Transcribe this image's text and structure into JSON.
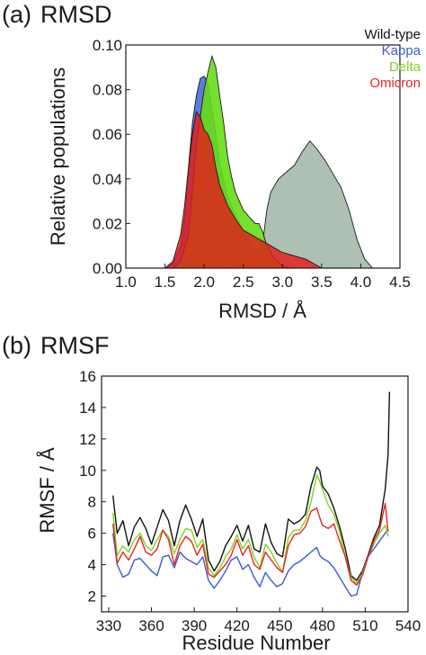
{
  "colors": {
    "wildtype": "#111111",
    "kappa": "#3a5bd9",
    "delta": "#7ed321",
    "omicron": "#e8261f",
    "wildtype_fill": "#9fb5a6",
    "kappa_fill": "#3f65d6",
    "delta_fill": "#66dd16",
    "omicron_fill": "#e41b1b"
  },
  "chart_data": [
    {
      "type": "area",
      "panel": "(a)",
      "title": "RMSD",
      "xlabel": "RMSD / Å",
      "ylabel": "Relative populations",
      "xlim": [
        1.0,
        4.5
      ],
      "ylim": [
        0,
        0.1
      ],
      "xticks": [
        "1.0",
        "1.5",
        "2.0",
        "2.5",
        "3.0",
        "3.5",
        "4.0",
        "4.5"
      ],
      "yticks": [
        "0.00",
        "0.02",
        "0.04",
        "0.06",
        "0.08",
        "0.10"
      ],
      "grid": false,
      "legend_position": "top-right",
      "series": [
        {
          "name": "Wild-type",
          "x": [
            1.95,
            2.2,
            2.5,
            2.7,
            2.75,
            2.8,
            2.85,
            2.95,
            3.05,
            3.15,
            3.25,
            3.35,
            3.45,
            3.55,
            3.65,
            3.75,
            3.85,
            3.95,
            4.05,
            4.15
          ],
          "y": [
            0.0,
            0.001,
            0.003,
            0.006,
            0.012,
            0.026,
            0.034,
            0.04,
            0.043,
            0.046,
            0.052,
            0.057,
            0.053,
            0.048,
            0.042,
            0.036,
            0.026,
            0.013,
            0.004,
            0.0
          ]
        },
        {
          "name": "Kappa",
          "x": [
            1.5,
            1.6,
            1.7,
            1.75,
            1.8,
            1.85,
            1.9,
            1.95,
            2.0,
            2.05,
            2.1,
            2.15,
            2.2,
            2.3,
            2.4,
            2.5,
            2.6,
            2.7,
            2.8,
            2.9,
            3.0,
            3.1
          ],
          "y": [
            0.0,
            0.002,
            0.01,
            0.022,
            0.045,
            0.065,
            0.077,
            0.085,
            0.086,
            0.083,
            0.071,
            0.06,
            0.046,
            0.032,
            0.024,
            0.016,
            0.01,
            0.006,
            0.003,
            0.002,
            0.001,
            0.0
          ]
        },
        {
          "name": "Delta",
          "x": [
            1.6,
            1.7,
            1.8,
            1.9,
            2.0,
            2.05,
            2.1,
            2.15,
            2.2,
            2.25,
            2.3,
            2.35,
            2.4,
            2.5,
            2.6,
            2.65,
            2.7,
            2.75,
            2.8,
            2.9,
            3.0,
            3.1
          ],
          "y": [
            0.0,
            0.003,
            0.015,
            0.055,
            0.08,
            0.088,
            0.095,
            0.09,
            0.077,
            0.065,
            0.05,
            0.041,
            0.034,
            0.026,
            0.022,
            0.02,
            0.02,
            0.016,
            0.01,
            0.004,
            0.001,
            0.0
          ]
        },
        {
          "name": "Omicron",
          "x": [
            1.5,
            1.6,
            1.7,
            1.75,
            1.8,
            1.85,
            1.9,
            1.95,
            2.0,
            2.05,
            2.1,
            2.15,
            2.2,
            2.3,
            2.4,
            2.5,
            2.6,
            2.7,
            2.8,
            2.9,
            3.0,
            3.1,
            3.2,
            3.3,
            3.4,
            3.5
          ],
          "y": [
            0.0,
            0.003,
            0.015,
            0.028,
            0.045,
            0.06,
            0.07,
            0.068,
            0.062,
            0.06,
            0.055,
            0.045,
            0.037,
            0.028,
            0.022,
            0.017,
            0.015,
            0.013,
            0.011,
            0.009,
            0.007,
            0.006,
            0.005,
            0.004,
            0.002,
            0.0
          ]
        }
      ]
    },
    {
      "type": "line",
      "panel": "(b)",
      "title": "RMSF",
      "xlabel": "Residue Number",
      "ylabel": "RMSF / Å",
      "xlim": [
        325,
        540
      ],
      "ylim": [
        1,
        16
      ],
      "xticks": [
        "330",
        "360",
        "390",
        "420",
        "450",
        "480",
        "510",
        "540"
      ],
      "yticks": [
        "2",
        "4",
        "6",
        "8",
        "10",
        "12",
        "14",
        "16"
      ],
      "grid": false,
      "series": [
        {
          "name": "Wild-type",
          "x": [
            333,
            336,
            340,
            344,
            348,
            352,
            356,
            360,
            364,
            368,
            372,
            376,
            380,
            384,
            388,
            392,
            396,
            400,
            404,
            408,
            412,
            416,
            420,
            424,
            428,
            432,
            436,
            440,
            444,
            448,
            452,
            456,
            460,
            464,
            468,
            472,
            476,
            478,
            480,
            484,
            488,
            492,
            496,
            500,
            504,
            508,
            512,
            516,
            520,
            524,
            526,
            527
          ],
          "y": [
            8.4,
            6.0,
            6.8,
            5.2,
            6.4,
            7.0,
            6.3,
            5.3,
            6.4,
            7.5,
            6.8,
            5.2,
            6.8,
            7.8,
            6.9,
            5.8,
            6.9,
            4.3,
            3.6,
            4.2,
            5.2,
            5.8,
            6.5,
            5.5,
            6.5,
            5.0,
            4.8,
            6.6,
            5.4,
            4.7,
            4.5,
            6.9,
            6.6,
            6.8,
            7.2,
            9.0,
            10.2,
            10.0,
            9.0,
            8.5,
            7.6,
            6.4,
            5.0,
            3.3,
            3.0,
            3.6,
            4.6,
            5.7,
            6.5,
            8.8,
            11.0,
            15.0
          ]
        },
        {
          "name": "Kappa",
          "x": [
            333,
            336,
            340,
            344,
            348,
            352,
            356,
            360,
            364,
            368,
            372,
            376,
            380,
            384,
            388,
            392,
            396,
            400,
            404,
            408,
            412,
            416,
            420,
            424,
            428,
            432,
            436,
            440,
            444,
            448,
            452,
            456,
            460,
            464,
            468,
            472,
            476,
            478,
            480,
            484,
            488,
            492,
            496,
            500,
            504,
            508,
            512,
            516,
            520,
            524,
            526
          ],
          "y": [
            6.0,
            4.0,
            3.2,
            3.4,
            4.3,
            4.4,
            4.0,
            3.6,
            3.3,
            4.5,
            4.6,
            3.8,
            4.8,
            4.4,
            4.2,
            4.0,
            4.5,
            3.0,
            2.5,
            3.0,
            3.6,
            4.3,
            4.5,
            3.7,
            4.0,
            3.2,
            2.6,
            3.5,
            3.0,
            2.6,
            2.8,
            3.6,
            4.0,
            4.2,
            4.5,
            4.8,
            5.1,
            4.6,
            4.4,
            4.2,
            3.8,
            3.2,
            2.6,
            2.0,
            2.1,
            3.5,
            4.5,
            5.0,
            5.5,
            6.0,
            6.2
          ]
        },
        {
          "name": "Delta",
          "x": [
            333,
            336,
            340,
            344,
            348,
            352,
            356,
            360,
            364,
            368,
            372,
            376,
            380,
            384,
            388,
            392,
            396,
            400,
            404,
            408,
            412,
            416,
            420,
            424,
            428,
            432,
            436,
            440,
            444,
            448,
            452,
            456,
            460,
            464,
            468,
            472,
            476,
            478,
            480,
            484,
            488,
            492,
            496,
            500,
            504,
            508,
            512,
            516,
            520,
            524,
            526
          ],
          "y": [
            7.3,
            4.6,
            5.2,
            4.8,
            5.6,
            6.0,
            5.2,
            4.9,
            5.6,
            6.2,
            5.8,
            4.7,
            5.6,
            6.3,
            6.2,
            5.1,
            5.6,
            3.8,
            3.3,
            3.8,
            4.5,
            5.0,
            5.9,
            5.0,
            5.6,
            4.5,
            3.8,
            5.3,
            4.8,
            4.1,
            3.5,
            5.7,
            6.2,
            6.2,
            6.8,
            8.0,
            9.7,
            9.3,
            8.8,
            7.8,
            7.2,
            6.1,
            4.5,
            3.2,
            2.8,
            3.4,
            4.5,
            5.3,
            6.0,
            6.5,
            5.8
          ]
        },
        {
          "name": "Omicron",
          "x": [
            333,
            336,
            340,
            344,
            348,
            352,
            356,
            360,
            364,
            368,
            372,
            376,
            380,
            384,
            388,
            392,
            396,
            400,
            404,
            408,
            412,
            416,
            420,
            424,
            428,
            432,
            436,
            440,
            444,
            448,
            452,
            456,
            460,
            464,
            468,
            472,
            476,
            478,
            480,
            484,
            488,
            492,
            496,
            500,
            504,
            508,
            512,
            516,
            520,
            524,
            526
          ],
          "y": [
            6.6,
            4.1,
            4.8,
            4.3,
            5.0,
            5.8,
            4.8,
            4.6,
            5.0,
            6.2,
            5.6,
            4.0,
            5.2,
            5.8,
            5.5,
            4.6,
            5.3,
            3.4,
            3.2,
            3.6,
            4.0,
            4.6,
            5.6,
            4.6,
            5.2,
            4.0,
            3.7,
            4.8,
            4.3,
            3.8,
            3.5,
            5.2,
            5.9,
            6.0,
            6.4,
            7.4,
            7.6,
            7.0,
            6.5,
            6.3,
            6.6,
            5.5,
            4.5,
            3.0,
            2.7,
            3.3,
            4.5,
            5.5,
            6.2,
            7.9,
            6.1
          ]
        }
      ]
    }
  ]
}
